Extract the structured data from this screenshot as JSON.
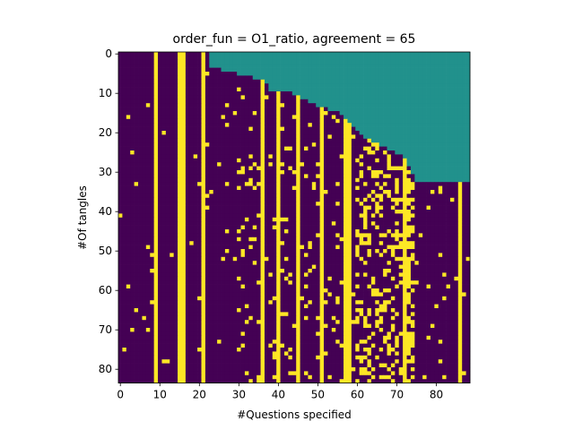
{
  "chart_data": {
    "type": "heatmap",
    "title": "order_fun = O1_ratio, agreement = 65",
    "xlabel": "#Questions specified",
    "ylabel": "#Of tangles",
    "xlim": [
      -0.5,
      88.5
    ],
    "ylim": [
      83.5,
      -0.5
    ],
    "n_columns": 89,
    "n_rows": 84,
    "xticks": [
      0,
      10,
      20,
      30,
      40,
      50,
      60,
      70,
      80
    ],
    "yticks": [
      0,
      10,
      20,
      30,
      40,
      50,
      60,
      70,
      80
    ],
    "legend": "none",
    "grid": false,
    "colors": {
      "low": "#440154",
      "high": "#fde725",
      "unspecified": "#21918c"
    },
    "specified_count_by_row": [
      23,
      23,
      23,
      23,
      26,
      30,
      34,
      37,
      38,
      38,
      44,
      46,
      48,
      50,
      53,
      56,
      57,
      58,
      59,
      60,
      61,
      62,
      64,
      66,
      68,
      70,
      72,
      73,
      73,
      74,
      74,
      75,
      75,
      89,
      89,
      89,
      89,
      89,
      89,
      89,
      89,
      89,
      89,
      89,
      89,
      89,
      89,
      89,
      89,
      89,
      89,
      89,
      89,
      89,
      89,
      89,
      89,
      89,
      89,
      89,
      89,
      89,
      89,
      89,
      89,
      89,
      89,
      89,
      89,
      89,
      89,
      89,
      89,
      89,
      89,
      89,
      89,
      89,
      89,
      89,
      89,
      89,
      89,
      89
    ],
    "full_high_columns": [
      9,
      15,
      16,
      21,
      36,
      40,
      45,
      51,
      57,
      58,
      72,
      86
    ],
    "noise_seed": 65
  }
}
